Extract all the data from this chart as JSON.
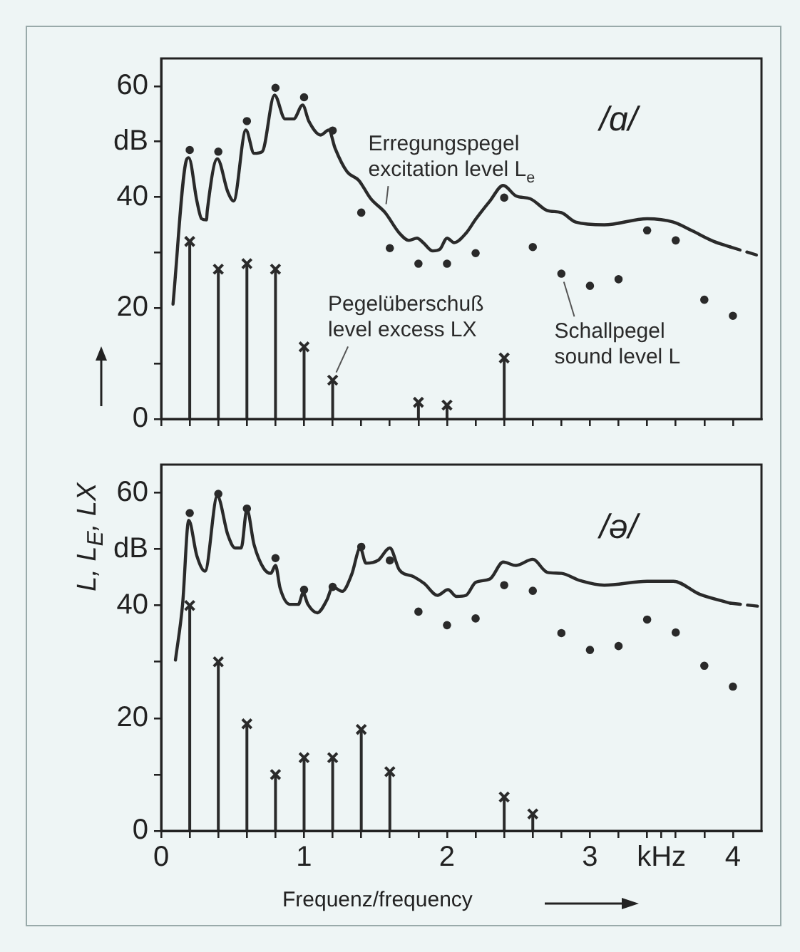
{
  "chart_data": [
    {
      "type": "line",
      "title": "/ɑ/",
      "ylabel": "L, L$_{E}$, LX",
      "xlim": [
        0,
        4.2
      ],
      "ylim": [
        0,
        65
      ],
      "xticks": [
        {
          "value": 0,
          "label": null
        },
        {
          "value": 0.2,
          "label": null
        },
        {
          "value": 0.4,
          "label": null
        },
        {
          "value": 0.6,
          "label": null
        },
        {
          "value": 0.8,
          "label": null
        },
        {
          "value": 1,
          "label": null
        },
        {
          "value": 1.2,
          "label": null
        },
        {
          "value": 1.4,
          "label": null
        },
        {
          "value": 1.6,
          "label": null
        },
        {
          "value": 1.8,
          "label": null
        },
        {
          "value": 2,
          "label": null
        },
        {
          "value": 2.2,
          "label": null
        },
        {
          "value": 2.4,
          "label": null
        },
        {
          "value": 2.6,
          "label": null
        },
        {
          "value": 2.8,
          "label": null
        },
        {
          "value": 3,
          "label": null
        },
        {
          "value": 3.2,
          "label": null
        },
        {
          "value": 3.4,
          "label": null
        },
        {
          "value": 3.6,
          "label": null
        },
        {
          "value": 3.8,
          "label": null
        },
        {
          "value": 4,
          "label": null
        }
      ],
      "yticks": [
        0,
        {
          "value": 10,
          "label": null
        },
        20,
        {
          "value": 30,
          "label": null
        },
        40,
        {
          "value": 50,
          "label": "dB"
        },
        60
      ],
      "tick_labels": "y",
      "grid": false,
      "x": [
        0.2,
        0.4,
        0.6,
        0.8,
        1.0,
        1.2,
        1.4,
        1.6,
        1.8,
        2.0,
        2.2,
        2.4,
        2.6,
        2.8,
        3.0,
        3.2,
        3.4,
        3.6,
        3.8,
        4.0
      ],
      "series": [
        {
          "name": "Erregungspegel\nexcitation level L$_{e}$",
          "color": "#2a2a2a",
          "marker": "none",
          "line_style": "solid",
          "x": [
            0.083,
            0.177,
            0.193,
            0.25,
            0.283,
            0.317,
            0.323,
            0.393,
            0.467,
            0.507,
            0.593,
            0.65,
            0.707,
            0.793,
            0.867,
            0.927,
            0.99,
            1.033,
            1.117,
            1.173,
            1.217,
            1.3,
            1.383,
            1.467,
            1.567,
            1.667,
            1.733,
            1.79,
            1.833,
            1.9,
            1.95,
            2.0,
            2.05,
            2.133,
            2.2,
            2.3,
            2.393,
            2.483,
            2.583,
            2.7,
            2.8,
            2.9,
            3.1,
            3.4,
            3.583,
            3.717,
            3.867,
            3.983
          ],
          "values": [
            20.7,
            46.7,
            47.1,
            39.3,
            36.1,
            35.9,
            37.6,
            46.9,
            40.9,
            39.3,
            52.1,
            47.9,
            48.2,
            58.4,
            54.1,
            54.1,
            56.6,
            53.7,
            51.2,
            52.1,
            48.8,
            44.6,
            43,
            39.7,
            37.2,
            33.5,
            32.2,
            32.6,
            31.8,
            30.3,
            30.6,
            32.6,
            31.8,
            33.5,
            36,
            39.3,
            42.1,
            40.2,
            39.7,
            37.6,
            37.2,
            35.5,
            35,
            36.1,
            35.5,
            33.9,
            32,
            31
          ]
        },
        {
          "color": "#2a2a2a",
          "marker": "none",
          "line_style": "dashed",
          "x": [
            3.983,
            4.2
          ],
          "values": [
            31,
            29.3
          ]
        },
        {
          "type": "scatter",
          "name": "Schallpegel\nsound level L",
          "color": "#2a2a2a",
          "marker": "circle",
          "values": [
            48.5,
            48.2,
            53.7,
            59.7,
            58,
            52,
            37.2,
            30.8,
            28,
            28,
            29.9,
            39.9,
            31,
            26.2,
            24,
            25.2,
            34,
            32.2,
            21.5,
            18.6
          ]
        },
        {
          "type": "lollipop",
          "name": "Pegelüberschuß\nlevel excess LX",
          "color": "#2a2a2a",
          "marker": "cross",
          "values": [
            32,
            27,
            28,
            27,
            13,
            7,
            null,
            null,
            3,
            2.5,
            null,
            11,
            null,
            null,
            null,
            null,
            null,
            null,
            null,
            null
          ]
        }
      ]
    },
    {
      "type": "line",
      "title": "/ə/",
      "xlabel": "Frequenz/frequency",
      "xlim": [
        0,
        4.2
      ],
      "ylim": [
        0,
        65
      ],
      "xticks": [
        0,
        {
          "value": 0.2,
          "label": null
        },
        {
          "value": 0.4,
          "label": null
        },
        {
          "value": 0.6,
          "label": null
        },
        {
          "value": 0.8,
          "label": null
        },
        1,
        {
          "value": 1.2,
          "label": null
        },
        {
          "value": 1.4,
          "label": null
        },
        {
          "value": 1.6,
          "label": null
        },
        {
          "value": 1.8,
          "label": null
        },
        2,
        {
          "value": 2.2,
          "label": null
        },
        {
          "value": 2.4,
          "label": null
        },
        {
          "value": 2.6,
          "label": null
        },
        {
          "value": 2.8,
          "label": null
        },
        3,
        {
          "value": 3.2,
          "label": null
        },
        {
          "value": 3.4,
          "label": null
        },
        {
          "value": 3.5,
          "label": "kHz"
        },
        {
          "value": 3.6,
          "label": null
        },
        {
          "value": 3.8,
          "label": null
        },
        4
      ],
      "yticks": [
        0,
        {
          "value": 10,
          "label": null
        },
        20,
        {
          "value": 30,
          "label": null
        },
        40,
        {
          "value": 50,
          "label": "dB"
        },
        60
      ],
      "grid": false,
      "x": [
        0.2,
        0.4,
        0.6,
        0.8,
        1.0,
        1.2,
        1.4,
        1.6,
        1.8,
        2.0,
        2.2,
        2.4,
        2.6,
        2.8,
        3.0,
        3.2,
        3.4,
        3.6,
        3.8,
        4.0
      ],
      "series": [
        {
          "color": "#2a2a2a",
          "marker": "none",
          "line_style": "solid",
          "x": [
            0.1,
            0.15,
            0.193,
            0.25,
            0.307,
            0.393,
            0.467,
            0.517,
            0.56,
            0.6,
            0.65,
            0.717,
            0.767,
            0.8,
            0.833,
            0.9,
            0.96,
            0.993,
            1.027,
            1.093,
            1.16,
            1.2,
            1.267,
            1.333,
            1.393,
            1.433,
            1.517,
            1.6,
            1.667,
            1.767,
            1.84,
            1.933,
            2.007,
            2.067,
            2.133,
            2.2,
            2.3,
            2.393,
            2.483,
            2.6,
            2.7,
            2.8,
            2.933,
            3.1,
            3.4,
            3.583,
            3.767,
            3.983
          ],
          "values": [
            30.3,
            40.2,
            55.1,
            48.8,
            46.1,
            59.4,
            52.5,
            50.2,
            50.2,
            57,
            50.8,
            46.6,
            45.7,
            47.1,
            43,
            40.2,
            40.2,
            42.2,
            40.2,
            38.7,
            41,
            43.3,
            42.5,
            45.5,
            50.2,
            47.5,
            48,
            50.2,
            46.3,
            45.1,
            43.9,
            41.8,
            42.8,
            41.6,
            41.8,
            44.1,
            44.7,
            47.7,
            47.1,
            48.2,
            45.9,
            45.7,
            44.4,
            43.6,
            44.3,
            44.3,
            42,
            40.4
          ]
        },
        {
          "color": "#2a2a2a",
          "marker": "none",
          "line_style": "dashed",
          "x": [
            3.983,
            4.2
          ],
          "values": [
            40.4,
            39.8
          ]
        },
        {
          "type": "scatter",
          "color": "#2a2a2a",
          "marker": "circle",
          "values": [
            56.4,
            59.8,
            57.2,
            48.4,
            42.8,
            43.3,
            50.4,
            48,
            38.9,
            36.5,
            37.7,
            43.6,
            42.6,
            35.1,
            32.1,
            32.8,
            37.5,
            35.2,
            29.3,
            25.6
          ]
        },
        {
          "type": "lollipop",
          "color": "#2a2a2a",
          "marker": "cross",
          "values": [
            40,
            30,
            19,
            10,
            13,
            13,
            18,
            10.5,
            null,
            null,
            null,
            6,
            3,
            null,
            null,
            null,
            null,
            null,
            null,
            null
          ]
        }
      ]
    }
  ]
}
